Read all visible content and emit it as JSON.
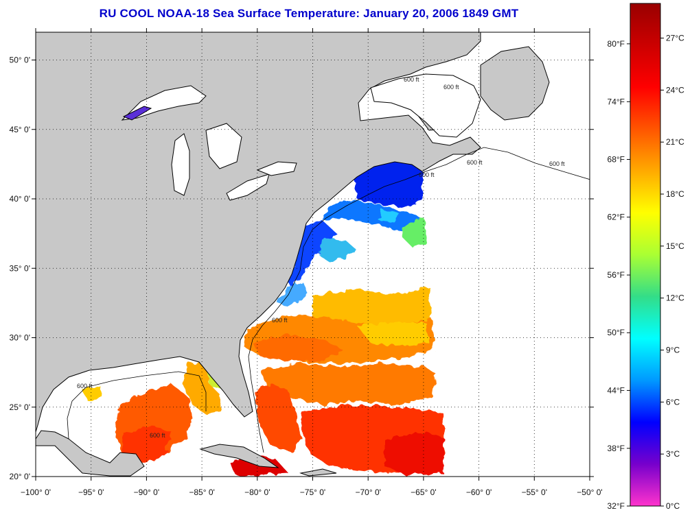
{
  "title": "RU COOL  NOAA-18  Sea Surface Temperature:  January 20, 2006 1849 GMT",
  "map": {
    "lon_range": [
      -100,
      -50
    ],
    "lat_range": [
      20,
      52
    ],
    "lon_ticks": [
      {
        "value": -100,
        "label": "−100° 0'"
      },
      {
        "value": -95,
        "label": "−95° 0'"
      },
      {
        "value": -90,
        "label": "−90° 0'"
      },
      {
        "value": -85,
        "label": "−85° 0'"
      },
      {
        "value": -80,
        "label": "−80° 0'"
      },
      {
        "value": -75,
        "label": "−75° 0'"
      },
      {
        "value": -70,
        "label": "−70° 0'"
      },
      {
        "value": -65,
        "label": "−65° 0'"
      },
      {
        "value": -60,
        "label": "−60° 0'"
      },
      {
        "value": -55,
        "label": "−55° 0'"
      },
      {
        "value": -50,
        "label": "−50° 0'"
      }
    ],
    "lat_ticks": [
      {
        "value": 20,
        "label": "20° 0'"
      },
      {
        "value": 25,
        "label": "25° 0'"
      },
      {
        "value": 30,
        "label": "30° 0'"
      },
      {
        "value": 35,
        "label": "35° 0'"
      },
      {
        "value": 40,
        "label": "40° 0'"
      },
      {
        "value": 45,
        "label": "45° 0'"
      },
      {
        "value": 50,
        "label": "50° 0'"
      }
    ],
    "grid": "dotted",
    "contour_label": "600 ft",
    "land_color": "#c8c8c8",
    "ocean_nodata_color": "#ffffff"
  },
  "colorbar": {
    "min_c": 0,
    "max_c": 29,
    "stops": [
      "#ff33cc",
      "#7700cc",
      "#0000ff",
      "#0099ff",
      "#00ffff",
      "#33dd88",
      "#aaff33",
      "#ffff00",
      "#ffaa00",
      "#ff5500",
      "#ff0000",
      "#cc0000",
      "#990000"
    ],
    "celsius_ticks": [
      {
        "value": 0,
        "label": "0°C"
      },
      {
        "value": 3,
        "label": "3°C"
      },
      {
        "value": 6,
        "label": "6°C"
      },
      {
        "value": 9,
        "label": "9°C"
      },
      {
        "value": 12,
        "label": "12°C"
      },
      {
        "value": 15,
        "label": "15°C"
      },
      {
        "value": 18,
        "label": "18°C"
      },
      {
        "value": 21,
        "label": "21°C"
      },
      {
        "value": 24,
        "label": "24°C"
      },
      {
        "value": 27,
        "label": "27°C"
      }
    ],
    "fahrenheit_ticks": [
      {
        "value": 0,
        "label": "32°F"
      },
      {
        "value": 3.33,
        "label": "38°F"
      },
      {
        "value": 6.67,
        "label": "44°F"
      },
      {
        "value": 10,
        "label": "50°F"
      },
      {
        "value": 13.33,
        "label": "56°F"
      },
      {
        "value": 16.67,
        "label": "62°F"
      },
      {
        "value": 20,
        "label": "68°F"
      },
      {
        "value": 23.33,
        "label": "74°F"
      },
      {
        "value": 26.67,
        "label": "80°F"
      }
    ]
  }
}
